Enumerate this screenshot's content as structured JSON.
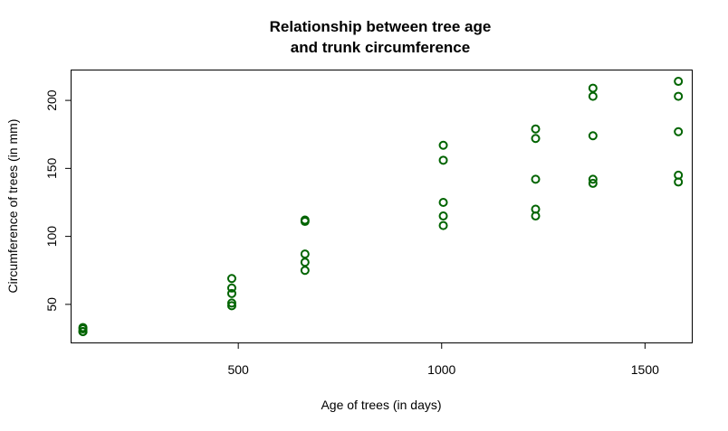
{
  "chart_data": {
    "type": "scatter",
    "title_line1": "Relationship between tree age",
    "title_line2": "and trunk circumference",
    "xlabel": "Age of trees (in days)",
    "ylabel": "Circumference of trees (in mm)",
    "xlim": [
      90,
      1615
    ],
    "ylim": [
      22,
      222
    ],
    "x_ticks": [
      500,
      1000,
      1500
    ],
    "y_ticks": [
      50,
      100,
      150,
      200
    ],
    "x_tick_labels": [
      "500",
      "1000",
      "1500"
    ],
    "y_tick_labels": [
      "50",
      "100",
      "150",
      "200"
    ],
    "grid": false,
    "marker_color": "#006400",
    "points": [
      {
        "x": 118,
        "y": 30
      },
      {
        "x": 118,
        "y": 33
      },
      {
        "x": 118,
        "y": 30
      },
      {
        "x": 118,
        "y": 32
      },
      {
        "x": 118,
        "y": 30
      },
      {
        "x": 484,
        "y": 58
      },
      {
        "x": 484,
        "y": 69
      },
      {
        "x": 484,
        "y": 51
      },
      {
        "x": 484,
        "y": 62
      },
      {
        "x": 484,
        "y": 49
      },
      {
        "x": 664,
        "y": 87
      },
      {
        "x": 664,
        "y": 111
      },
      {
        "x": 664,
        "y": 75
      },
      {
        "x": 664,
        "y": 112
      },
      {
        "x": 664,
        "y": 81
      },
      {
        "x": 1004,
        "y": 115
      },
      {
        "x": 1004,
        "y": 156
      },
      {
        "x": 1004,
        "y": 108
      },
      {
        "x": 1004,
        "y": 167
      },
      {
        "x": 1004,
        "y": 125
      },
      {
        "x": 1231,
        "y": 120
      },
      {
        "x": 1231,
        "y": 172
      },
      {
        "x": 1231,
        "y": 115
      },
      {
        "x": 1231,
        "y": 179
      },
      {
        "x": 1231,
        "y": 142
      },
      {
        "x": 1372,
        "y": 142
      },
      {
        "x": 1372,
        "y": 203
      },
      {
        "x": 1372,
        "y": 139
      },
      {
        "x": 1372,
        "y": 209
      },
      {
        "x": 1372,
        "y": 174
      },
      {
        "x": 1582,
        "y": 145
      },
      {
        "x": 1582,
        "y": 203
      },
      {
        "x": 1582,
        "y": 140
      },
      {
        "x": 1582,
        "y": 214
      },
      {
        "x": 1582,
        "y": 177
      }
    ]
  }
}
